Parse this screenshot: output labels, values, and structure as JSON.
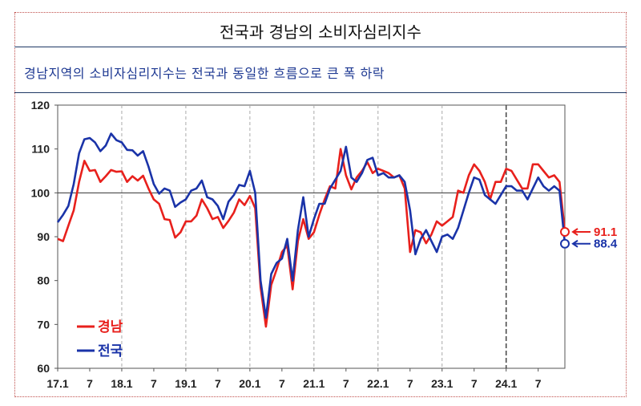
{
  "title": "전국과 경남의 소비자심리지수",
  "subtitle": "경남지역의 소비자심리지수는 전국과 동일한 흐름으로 큰 폭 하락",
  "chart_data": {
    "type": "line",
    "ylim": [
      60,
      120
    ],
    "yticks": [
      "60",
      "70",
      "80",
      "90",
      "100",
      "110",
      "120"
    ],
    "reference_line": 100,
    "x_labels": [
      {
        "label": "17.1",
        "month": 0
      },
      {
        "label": "7",
        "month": 6
      },
      {
        "label": "18.1",
        "month": 12
      },
      {
        "label": "7",
        "month": 18
      },
      {
        "label": "19.1",
        "month": 24
      },
      {
        "label": "7",
        "month": 30
      },
      {
        "label": "20.1",
        "month": 36
      },
      {
        "label": "7",
        "month": 42
      },
      {
        "label": "21.1",
        "month": 48
      },
      {
        "label": "7",
        "month": 54
      },
      {
        "label": "22.1",
        "month": 60
      },
      {
        "label": "7",
        "month": 66
      },
      {
        "label": "23.1",
        "month": 72
      },
      {
        "label": "7",
        "month": 78
      },
      {
        "label": "24.1",
        "month": 84
      },
      {
        "label": "7",
        "month": 90
      }
    ],
    "grid_dashed_months": [
      12,
      24,
      36,
      48,
      60,
      72
    ],
    "grid_emphasis_month": 84,
    "legend_placement": "bottom-left",
    "series": [
      {
        "name": "경남",
        "color": "#e8201c",
        "end_label": "91.1",
        "values": [
          89.5,
          89.0,
          92.5,
          96.0,
          102.5,
          107.3,
          105.0,
          105.2,
          102.5,
          103.8,
          105.2,
          104.8,
          104.9,
          102.5,
          103.8,
          102.8,
          103.9,
          101.0,
          98.5,
          97.5,
          94.0,
          93.8,
          89.8,
          91.0,
          93.5,
          93.5,
          94.8,
          98.5,
          96.5,
          94.0,
          94.5,
          92.0,
          93.6,
          95.5,
          98.5,
          97.2,
          99.3,
          96.5,
          78.5,
          69.5,
          79.0,
          82.5,
          86.5,
          88.0,
          78.0,
          89.0,
          94.0,
          89.5,
          91.0,
          95.0,
          98.5,
          101.5,
          101.0,
          110.0,
          104.0,
          100.8,
          103.5,
          105.0,
          107.0,
          104.5,
          105.5,
          105.0,
          104.5,
          103.5,
          104.0,
          101.0,
          86.5,
          91.5,
          91.0,
          88.5,
          90.5,
          93.5,
          92.5,
          93.5,
          94.5,
          100.5,
          100.0,
          104.0,
          106.5,
          105.0,
          102.5,
          98.5,
          102.5,
          102.5,
          105.5,
          105.0,
          103.0,
          101.0,
          101.0,
          106.5,
          106.5,
          105.0,
          103.5,
          104.0,
          102.5,
          91.1
        ]
      },
      {
        "name": "전국",
        "color": "#1a33a8",
        "end_label": "88.4",
        "values": [
          93.3,
          95.0,
          97.0,
          102.0,
          109.0,
          112.2,
          112.5,
          111.5,
          109.5,
          110.8,
          113.5,
          112.0,
          111.5,
          109.8,
          109.7,
          108.5,
          109.5,
          106.0,
          102.0,
          99.8,
          101.0,
          100.5,
          96.8,
          97.8,
          98.5,
          100.5,
          101.0,
          102.8,
          99.0,
          98.5,
          97.0,
          94.0,
          98.0,
          99.5,
          101.8,
          101.5,
          105.0,
          100.0,
          80.0,
          71.5,
          81.5,
          84.0,
          85.0,
          89.5,
          80.0,
          91.5,
          99.0,
          90.0,
          94.0,
          97.5,
          97.5,
          101.0,
          103.0,
          105.0,
          110.5,
          103.5,
          102.5,
          104.5,
          107.5,
          108.0,
          104.0,
          104.5,
          103.5,
          103.5,
          104.0,
          102.5,
          96.0,
          86.0,
          89.5,
          91.5,
          89.0,
          86.5,
          90.0,
          90.5,
          89.5,
          92.0,
          96.0,
          100.0,
          103.5,
          103.0,
          99.5,
          98.5,
          97.5,
          99.5,
          101.5,
          101.5,
          100.5,
          100.5,
          98.5,
          101.0,
          103.5,
          101.5,
          100.5,
          101.5,
          100.5,
          88.4
        ]
      }
    ]
  }
}
